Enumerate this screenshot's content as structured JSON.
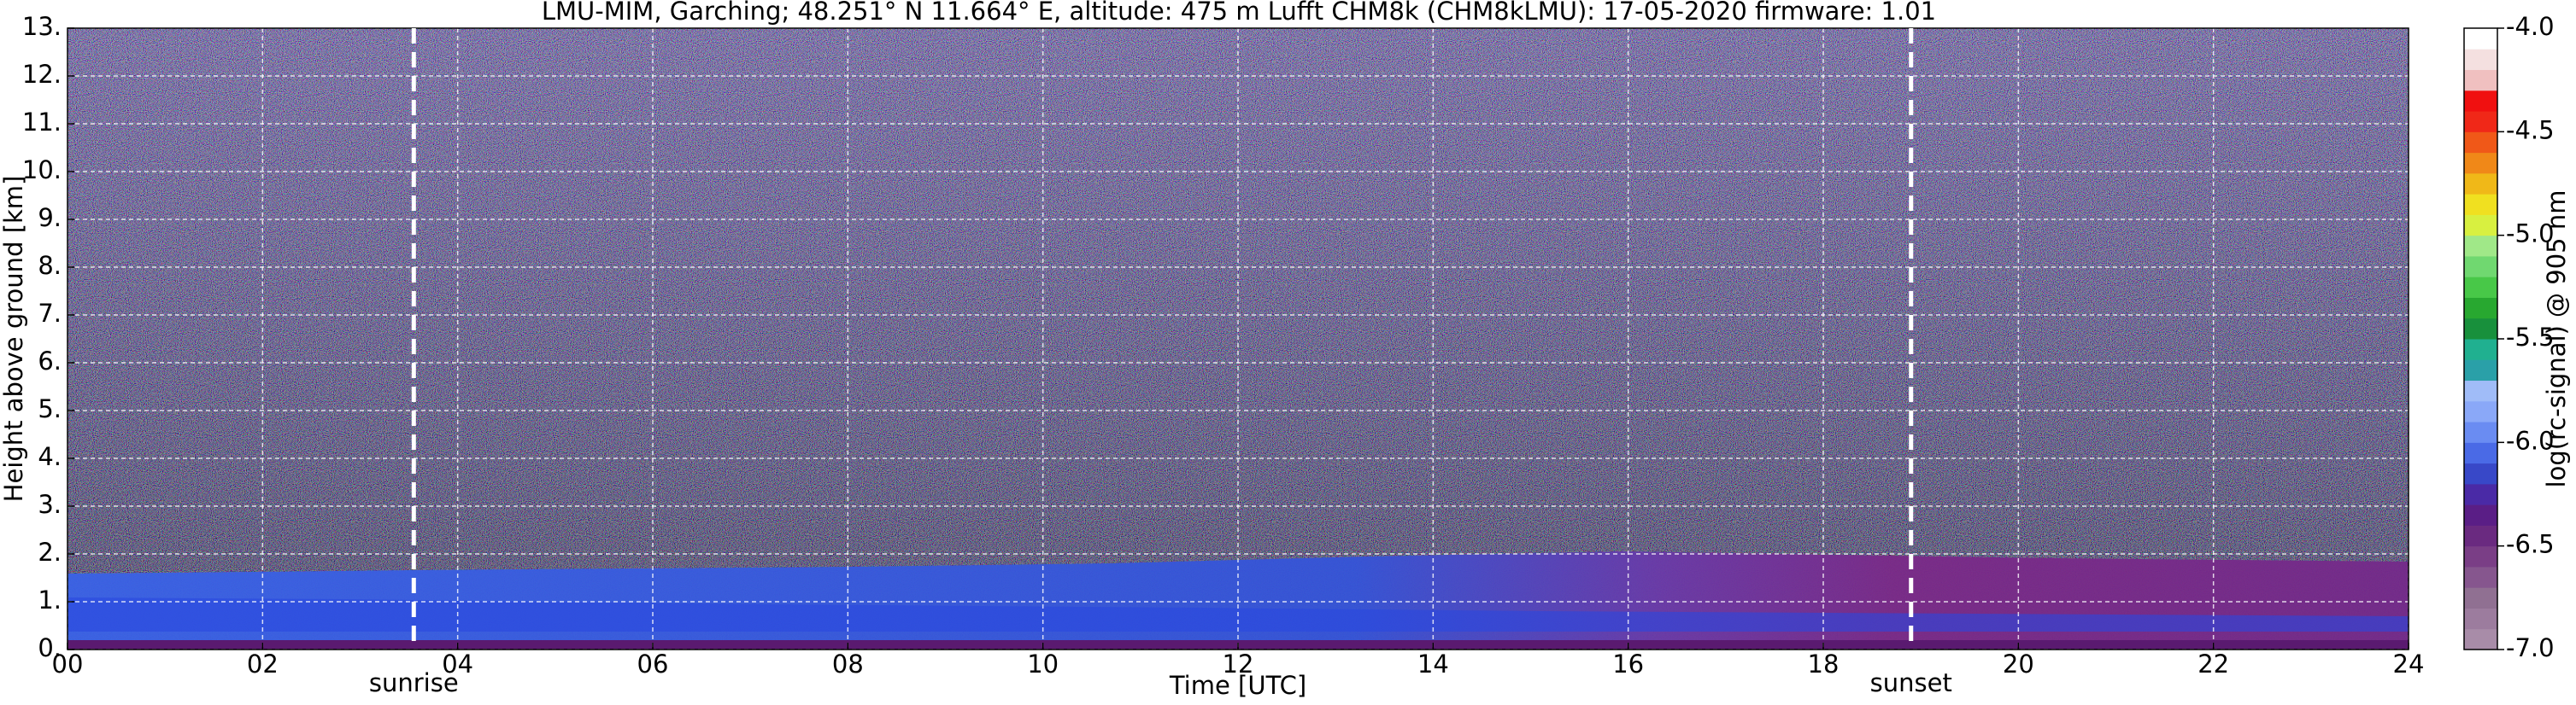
{
  "chart_data": {
    "type": "heatmap",
    "title": "LMU-MIM, Garching; 48.251° N 11.664° E, altitude: 475 m    Lufft CHM8k (CHM8kLMU): 17-05-2020    firmware: 1.01",
    "x_label": "Time [UTC]",
    "y_label": "Height above ground [km]",
    "xlim": [
      0,
      24
    ],
    "xticks": [
      {
        "value": 0,
        "label": "00"
      },
      {
        "value": 2,
        "label": "02"
      },
      {
        "value": 4,
        "label": "04"
      },
      {
        "value": 6,
        "label": "06"
      },
      {
        "value": 8,
        "label": "08"
      },
      {
        "value": 10,
        "label": "10"
      },
      {
        "value": 12,
        "label": "12"
      },
      {
        "value": 14,
        "label": "14"
      },
      {
        "value": 16,
        "label": "16"
      },
      {
        "value": 18,
        "label": "18"
      },
      {
        "value": 20,
        "label": "20"
      },
      {
        "value": 22,
        "label": "22"
      },
      {
        "value": 24,
        "label": "24"
      }
    ],
    "ylim": [
      0,
      13
    ],
    "yticks": [
      {
        "value": 0,
        "label": "0."
      },
      {
        "value": 1,
        "label": "1."
      },
      {
        "value": 2,
        "label": "2."
      },
      {
        "value": 3,
        "label": "3."
      },
      {
        "value": 4,
        "label": "4."
      },
      {
        "value": 5,
        "label": "5."
      },
      {
        "value": 6,
        "label": "6."
      },
      {
        "value": 7,
        "label": "7."
      },
      {
        "value": 8,
        "label": "8."
      },
      {
        "value": 9,
        "label": "9."
      },
      {
        "value": 10,
        "label": "10."
      },
      {
        "value": 11,
        "label": "11."
      },
      {
        "value": 12,
        "label": "12."
      },
      {
        "value": 13,
        "label": "13."
      }
    ],
    "grid": true,
    "annotations": [
      {
        "value": 3.55,
        "label": "sunrise"
      },
      {
        "value": 18.9,
        "label": "sunset"
      }
    ],
    "colorbar": {
      "label": "log(rc-signal) @ 905 nm",
      "lim": [
        -7,
        -4
      ],
      "ticks": [
        {
          "value": -4,
          "label": "-4.0"
        },
        {
          "value": -4.5,
          "label": "-4.5"
        },
        {
          "value": -5,
          "label": "-5.0"
        },
        {
          "value": -5.5,
          "label": "-5.5"
        },
        {
          "value": -6,
          "label": "-6.0"
        },
        {
          "value": -6.5,
          "label": "-6.5"
        },
        {
          "value": -7,
          "label": "-7.0"
        }
      ],
      "colors": [
        "#a88ca8",
        "#9c7c9e",
        "#907092",
        "#86568e",
        "#7a3e86",
        "#6a2a80",
        "#5a1e86",
        "#4a2aa6",
        "#3848c8",
        "#4a6ae6",
        "#6a8cf2",
        "#8aa8f8",
        "#a0bcf8",
        "#2aa0a8",
        "#20b090",
        "#18903c",
        "#28a830",
        "#48c848",
        "#70d870",
        "#a0e888",
        "#d8f040",
        "#f0e020",
        "#f0b818",
        "#f08818",
        "#f05818",
        "#f02818",
        "#f01010",
        "#f0c0c0",
        "#f4e0e0",
        "#ffffff"
      ]
    }
  }
}
